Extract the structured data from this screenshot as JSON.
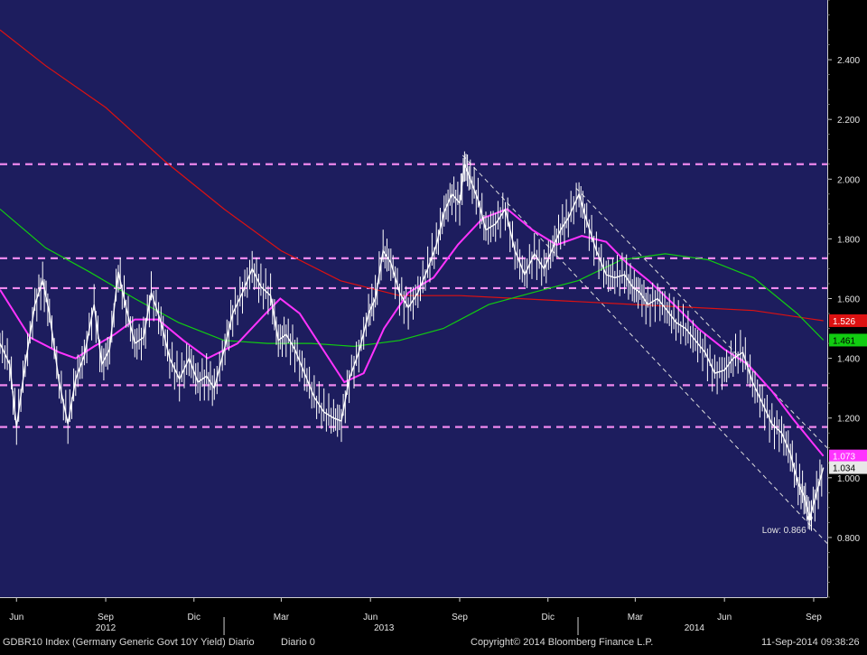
{
  "footer": {
    "index_label": "GDBR10 Index (Germany Generic Govt 10Y Yield) Diario",
    "diario_label": "Diario 0",
    "copyright": "Copyright© 2014 Bloomberg Finance L.P.",
    "timestamp": "11-Sep-2014 09:38:26"
  },
  "colors": {
    "plot_bg": "#1d1d5e",
    "price": "#ffffff",
    "ma_short": "#ff33ff",
    "ma_mid": "#11cc11",
    "ma_long": "#dd1111",
    "support_lines": "#ee88ee",
    "channel": "#dddddd"
  },
  "chart_data": {
    "type": "line",
    "title": "",
    "xlabel": "",
    "ylabel": "",
    "ylim": [
      0.6,
      2.6
    ],
    "y_ticks": [
      "0.800",
      "1.000",
      "1.200",
      "1.400",
      "1.600",
      "1.800",
      "2.000",
      "2.200",
      "2.400"
    ],
    "x_start": "2012-05-15",
    "x_end": "2014-09-15",
    "month_ticks": [
      {
        "label": "Jun",
        "date": "2012-06-01"
      },
      {
        "label": "Sep",
        "date": "2012-09-01"
      },
      {
        "label": "Dic",
        "date": "2012-12-01"
      },
      {
        "label": "Mar",
        "date": "2013-03-01"
      },
      {
        "label": "Jun",
        "date": "2013-06-01"
      },
      {
        "label": "Sep",
        "date": "2013-09-01"
      },
      {
        "label": "Dic",
        "date": "2013-12-01"
      },
      {
        "label": "Mar",
        "date": "2014-03-01"
      },
      {
        "label": "Jun",
        "date": "2014-06-01"
      },
      {
        "label": "Sep",
        "date": "2014-09-01"
      }
    ],
    "year_labels": [
      {
        "label": "2012",
        "date": "2012-09-01"
      },
      {
        "label": "2013",
        "date": "2013-06-15"
      },
      {
        "label": "2014",
        "date": "2014-05-01"
      }
    ],
    "year_dividers": [
      "2013-01-01",
      "2014-01-01"
    ],
    "price_series": {
      "name": "GDBR10",
      "points": [
        [
          "2012-05-15",
          1.45
        ],
        [
          "2012-05-25",
          1.38
        ],
        [
          "2012-06-01",
          1.17
        ],
        [
          "2012-06-10",
          1.38
        ],
        [
          "2012-06-20",
          1.58
        ],
        [
          "2012-06-28",
          1.66
        ],
        [
          "2012-07-05",
          1.55
        ],
        [
          "2012-07-15",
          1.32
        ],
        [
          "2012-07-24",
          1.18
        ],
        [
          "2012-08-01",
          1.33
        ],
        [
          "2012-08-10",
          1.41
        ],
        [
          "2012-08-20",
          1.58
        ],
        [
          "2012-08-28",
          1.38
        ],
        [
          "2012-09-05",
          1.43
        ],
        [
          "2012-09-14",
          1.69
        ],
        [
          "2012-09-22",
          1.57
        ],
        [
          "2012-10-01",
          1.45
        ],
        [
          "2012-10-10",
          1.47
        ],
        [
          "2012-10-18",
          1.62
        ],
        [
          "2012-10-28",
          1.52
        ],
        [
          "2012-11-06",
          1.4
        ],
        [
          "2012-11-16",
          1.33
        ],
        [
          "2012-11-26",
          1.4
        ],
        [
          "2012-12-05",
          1.32
        ],
        [
          "2012-12-14",
          1.34
        ],
        [
          "2012-12-22",
          1.3
        ],
        [
          "2013-01-02",
          1.44
        ],
        [
          "2013-01-10",
          1.55
        ],
        [
          "2013-01-20",
          1.62
        ],
        [
          "2013-01-30",
          1.7
        ],
        [
          "2013-02-08",
          1.64
        ],
        [
          "2013-02-18",
          1.61
        ],
        [
          "2013-02-26",
          1.46
        ],
        [
          "2013-03-06",
          1.48
        ],
        [
          "2013-03-15",
          1.43
        ],
        [
          "2013-03-25",
          1.35
        ],
        [
          "2013-04-04",
          1.27
        ],
        [
          "2013-04-14",
          1.22
        ],
        [
          "2013-04-24",
          1.2
        ],
        [
          "2013-05-02",
          1.19
        ],
        [
          "2013-05-10",
          1.33
        ],
        [
          "2013-05-20",
          1.42
        ],
        [
          "2013-05-30",
          1.55
        ],
        [
          "2013-06-06",
          1.6
        ],
        [
          "2013-06-14",
          1.76
        ],
        [
          "2013-06-22",
          1.72
        ],
        [
          "2013-07-01",
          1.62
        ],
        [
          "2013-07-10",
          1.57
        ],
        [
          "2013-07-20",
          1.62
        ],
        [
          "2013-07-30",
          1.7
        ],
        [
          "2013-08-08",
          1.78
        ],
        [
          "2013-08-16",
          1.89
        ],
        [
          "2013-08-24",
          1.95
        ],
        [
          "2013-09-01",
          1.92
        ],
        [
          "2013-09-06",
          2.05
        ],
        [
          "2013-09-12",
          2.0
        ],
        [
          "2013-09-20",
          1.93
        ],
        [
          "2013-09-28",
          1.83
        ],
        [
          "2013-10-08",
          1.85
        ],
        [
          "2013-10-18",
          1.9
        ],
        [
          "2013-10-28",
          1.76
        ],
        [
          "2013-11-07",
          1.68
        ],
        [
          "2013-11-17",
          1.75
        ],
        [
          "2013-11-27",
          1.7
        ],
        [
          "2013-12-06",
          1.77
        ],
        [
          "2013-12-14",
          1.83
        ],
        [
          "2013-12-22",
          1.87
        ],
        [
          "2014-01-02",
          1.95
        ],
        [
          "2014-01-10",
          1.86
        ],
        [
          "2014-01-20",
          1.76
        ],
        [
          "2014-01-30",
          1.68
        ],
        [
          "2014-02-08",
          1.67
        ],
        [
          "2014-02-18",
          1.68
        ],
        [
          "2014-02-26",
          1.64
        ],
        [
          "2014-03-06",
          1.62
        ],
        [
          "2014-03-14",
          1.58
        ],
        [
          "2014-03-24",
          1.6
        ],
        [
          "2014-04-03",
          1.56
        ],
        [
          "2014-04-12",
          1.52
        ],
        [
          "2014-04-22",
          1.5
        ],
        [
          "2014-05-02",
          1.46
        ],
        [
          "2014-05-12",
          1.42
        ],
        [
          "2014-05-22",
          1.35
        ],
        [
          "2014-06-01",
          1.36
        ],
        [
          "2014-06-10",
          1.4
        ],
        [
          "2014-06-20",
          1.42
        ],
        [
          "2014-06-30",
          1.32
        ],
        [
          "2014-07-10",
          1.25
        ],
        [
          "2014-07-20",
          1.18
        ],
        [
          "2014-07-30",
          1.15
        ],
        [
          "2014-08-08",
          1.08
        ],
        [
          "2014-08-16",
          0.98
        ],
        [
          "2014-08-22",
          0.94
        ],
        [
          "2014-08-28",
          0.866
        ],
        [
          "2014-09-04",
          0.95
        ],
        [
          "2014-09-11",
          1.034
        ]
      ]
    },
    "moving_averages": [
      {
        "key": "ma_short",
        "last_value": "1.073",
        "points": [
          [
            "2012-05-15",
            1.63
          ],
          [
            "2012-06-15",
            1.47
          ],
          [
            "2012-07-15",
            1.42
          ],
          [
            "2012-08-01",
            1.4
          ],
          [
            "2012-08-20",
            1.44
          ],
          [
            "2012-09-10",
            1.48
          ],
          [
            "2012-10-01",
            1.53
          ],
          [
            "2012-10-25",
            1.53
          ],
          [
            "2012-11-20",
            1.46
          ],
          [
            "2012-12-15",
            1.4
          ],
          [
            "2013-01-15",
            1.45
          ],
          [
            "2013-02-10",
            1.54
          ],
          [
            "2013-02-28",
            1.6
          ],
          [
            "2013-03-20",
            1.55
          ],
          [
            "2013-04-15",
            1.42
          ],
          [
            "2013-05-05",
            1.32
          ],
          [
            "2013-05-25",
            1.35
          ],
          [
            "2013-06-15",
            1.5
          ],
          [
            "2013-07-10",
            1.62
          ],
          [
            "2013-08-05",
            1.67
          ],
          [
            "2013-08-30",
            1.78
          ],
          [
            "2013-09-25",
            1.87
          ],
          [
            "2013-10-20",
            1.9
          ],
          [
            "2013-11-15",
            1.83
          ],
          [
            "2013-12-10",
            1.78
          ],
          [
            "2014-01-05",
            1.81
          ],
          [
            "2014-01-30",
            1.79
          ],
          [
            "2014-02-20",
            1.72
          ],
          [
            "2014-03-15",
            1.66
          ],
          [
            "2014-04-10",
            1.58
          ],
          [
            "2014-05-05",
            1.5
          ],
          [
            "2014-06-01",
            1.43
          ],
          [
            "2014-06-25",
            1.38
          ],
          [
            "2014-07-20",
            1.29
          ],
          [
            "2014-08-10",
            1.2
          ],
          [
            "2014-08-30",
            1.12
          ],
          [
            "2014-09-11",
            1.073
          ]
        ]
      },
      {
        "key": "ma_mid",
        "last_value": "1.461",
        "points": [
          [
            "2012-05-15",
            1.9
          ],
          [
            "2012-07-01",
            1.77
          ],
          [
            "2012-08-15",
            1.69
          ],
          [
            "2012-10-01",
            1.6
          ],
          [
            "2012-11-15",
            1.52
          ],
          [
            "2013-01-01",
            1.46
          ],
          [
            "2013-02-15",
            1.45
          ],
          [
            "2013-04-01",
            1.45
          ],
          [
            "2013-05-15",
            1.44
          ],
          [
            "2013-07-01",
            1.46
          ],
          [
            "2013-08-15",
            1.5
          ],
          [
            "2013-10-01",
            1.58
          ],
          [
            "2013-11-15",
            1.62
          ],
          [
            "2014-01-01",
            1.66
          ],
          [
            "2014-02-15",
            1.73
          ],
          [
            "2014-04-01",
            1.75
          ],
          [
            "2014-05-15",
            1.73
          ],
          [
            "2014-07-01",
            1.67
          ],
          [
            "2014-08-15",
            1.55
          ],
          [
            "2014-09-11",
            1.461
          ]
        ]
      },
      {
        "key": "ma_long",
        "last_value": "1.526",
        "points": [
          [
            "2012-05-15",
            2.5
          ],
          [
            "2012-07-01",
            2.38
          ],
          [
            "2012-09-01",
            2.24
          ],
          [
            "2012-11-01",
            2.06
          ],
          [
            "2013-01-01",
            1.9
          ],
          [
            "2013-03-01",
            1.76
          ],
          [
            "2013-05-01",
            1.66
          ],
          [
            "2013-07-01",
            1.61
          ],
          [
            "2013-09-01",
            1.61
          ],
          [
            "2013-11-01",
            1.6
          ],
          [
            "2014-01-01",
            1.59
          ],
          [
            "2014-03-01",
            1.58
          ],
          [
            "2014-05-01",
            1.57
          ],
          [
            "2014-07-01",
            1.56
          ],
          [
            "2014-09-11",
            1.526
          ]
        ]
      }
    ],
    "horizontal_levels": [
      2.05,
      1.735,
      1.635,
      1.31,
      1.17
    ],
    "channel_lines": [
      {
        "from": [
          "2013-09-04",
          2.08
        ],
        "to": [
          "2014-09-15",
          0.78
        ]
      },
      {
        "from": [
          "2013-12-30",
          1.97
        ],
        "to": [
          "2014-09-15",
          1.1
        ]
      }
    ],
    "price_label": "1.034",
    "annotation": {
      "text": "Low: 0.866",
      "date": "2014-08-28",
      "value": 0.866
    }
  }
}
